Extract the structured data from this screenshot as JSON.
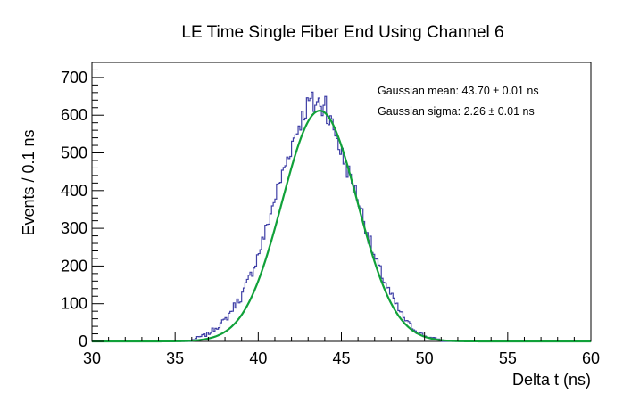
{
  "chart_data": {
    "type": "histogram-with-fit",
    "title": "LE Time Single Fiber End Using Channel 6",
    "xlabel": "Delta t (ns)",
    "ylabel": "Events / 0.1 ns",
    "xlim": [
      30,
      60
    ],
    "ylim": [
      0,
      740
    ],
    "xticks": [
      30,
      35,
      40,
      45,
      50,
      55,
      60
    ],
    "yticks": [
      0,
      100,
      200,
      300,
      400,
      500,
      600,
      700
    ],
    "bin_width": 0.1,
    "grid": false,
    "annotations": [
      "Gaussian mean: 43.70 ± 0.01 ns",
      "Gaussian sigma: 2.26 ± 0.01 ns"
    ],
    "series": [
      {
        "kind": "histogram",
        "color": "#3f3fa6",
        "x": [
          36.0,
          36.5,
          37.0,
          37.5,
          38.0,
          38.5,
          39.0,
          39.5,
          40.0,
          40.5,
          41.0,
          41.5,
          42.0,
          42.5,
          43.0,
          43.2,
          43.4,
          43.6,
          43.8,
          44.0,
          44.2,
          44.4,
          44.6,
          45.0,
          45.5,
          46.0,
          46.5,
          47.0,
          47.5,
          48.0,
          48.5,
          49.0,
          49.5,
          50.0,
          50.5,
          51.0
        ],
        "y": [
          3,
          12,
          20,
          38,
          55,
          90,
          120,
          170,
          230,
          300,
          380,
          450,
          520,
          580,
          630,
          640,
          620,
          650,
          600,
          660,
          590,
          580,
          560,
          500,
          440,
          380,
          300,
          220,
          170,
          120,
          80,
          48,
          28,
          14,
          8,
          4
        ]
      },
      {
        "kind": "gaussian-fit",
        "color": "#11a13a",
        "mean": 43.7,
        "sigma": 2.26,
        "amplitude": 612
      }
    ]
  }
}
